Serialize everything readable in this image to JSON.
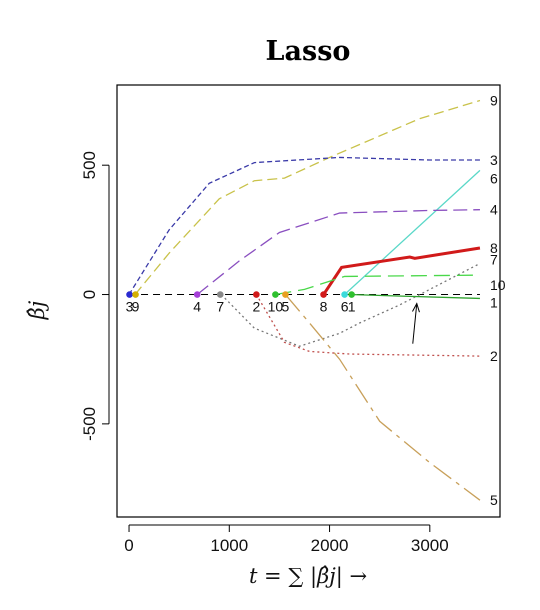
{
  "chart_data": {
    "type": "line",
    "title": "Lasso",
    "xlabel": "t = ∑ |β̂j| →",
    "ylabel": "β̂j",
    "xlim": [
      -120,
      3700
    ],
    "ylim": [
      -860,
      810
    ],
    "xticks": [
      "0",
      "1000",
      "2000",
      "3000"
    ],
    "yticks": [
      "-500",
      "0",
      "500"
    ],
    "xtick_values": [
      0,
      1000,
      2000,
      3000
    ],
    "ytick_values": [
      -500,
      0,
      500
    ],
    "grid": false,
    "zero_line": true,
    "series": [
      {
        "name": "9",
        "color": "#c9c24a",
        "dash": "10,5",
        "x": [
          60,
          400,
          900,
          1250,
          1550,
          2000,
          2300,
          2900,
          3500
        ],
        "y": [
          0,
          160,
          370,
          440,
          450,
          530,
          580,
          680,
          750
        ]
      },
      {
        "name": "3",
        "color": "#3a3aa8",
        "dash": "5,3",
        "x": [
          0,
          400,
          800,
          1250,
          2100,
          3000,
          3500
        ],
        "y": [
          0,
          250,
          430,
          510,
          530,
          520,
          520
        ]
      },
      {
        "name": "6",
        "color": "#5ad8c8",
        "dash": "",
        "x": [
          2150,
          3500
        ],
        "y": [
          0,
          480
        ]
      },
      {
        "name": "4",
        "color": "#8a4fc0",
        "dash": "14,6",
        "x": [
          680,
          1100,
          1500,
          2100,
          3000,
          3500
        ],
        "y": [
          0,
          130,
          240,
          315,
          325,
          328
        ]
      },
      {
        "name": "8",
        "color": "#d11a1a",
        "dash": "",
        "x": [
          1940,
          2120,
          2800,
          2850,
          3500
        ],
        "y": [
          0,
          105,
          145,
          140,
          180
        ]
      },
      {
        "name": "7",
        "color": "#777777",
        "dash": "2,3",
        "x": [
          920,
          1250,
          1700,
          2100,
          2300,
          2700,
          3500
        ],
        "y": [
          0,
          -130,
          -200,
          -150,
          -110,
          -40,
          120
        ]
      },
      {
        "name": "10",
        "color": "#4ad84a",
        "dash": "16,7",
        "x": [
          1460,
          1750,
          2150,
          3500
        ],
        "y": [
          0,
          20,
          70,
          75
        ]
      },
      {
        "name": "1",
        "color": "#2ea22e",
        "dash": "",
        "x": [
          2200,
          3500
        ],
        "y": [
          0,
          -15
        ]
      },
      {
        "name": "2",
        "color": "#c0504d",
        "dash": "2,3",
        "x": [
          1270,
          1550,
          1800,
          2200,
          3500
        ],
        "y": [
          0,
          -185,
          -220,
          -230,
          -238
        ]
      },
      {
        "name": "5",
        "color": "#c8a05a",
        "dash": "22,6,4,6",
        "x": [
          1560,
          1800,
          2100,
          2500,
          3000,
          3500
        ],
        "y": [
          0,
          -110,
          -250,
          -490,
          -650,
          -795
        ]
      }
    ],
    "entry_points": [
      {
        "label": "3",
        "x": 5,
        "color": "#2a2ad0"
      },
      {
        "label": "9",
        "x": 65,
        "color": "#d4b000"
      },
      {
        "label": "4",
        "x": 680,
        "color": "#a640d8"
      },
      {
        "label": "7",
        "x": 910,
        "color": "#888888"
      },
      {
        "label": "2",
        "x": 1270,
        "color": "#d11a1a"
      },
      {
        "label": "10",
        "x": 1460,
        "color": "#2ec02e"
      },
      {
        "label": "5",
        "x": 1560,
        "color": "#e8a020"
      },
      {
        "label": "8",
        "x": 1940,
        "color": "#d11a1a"
      },
      {
        "label": "6",
        "x": 2150,
        "color": "#3adadb"
      },
      {
        "label": "1",
        "x": 2220,
        "color": "#2ec02e"
      }
    ],
    "arrow": {
      "from": [
        2830,
        -190
      ],
      "to": [
        2870,
        -35
      ]
    }
  }
}
